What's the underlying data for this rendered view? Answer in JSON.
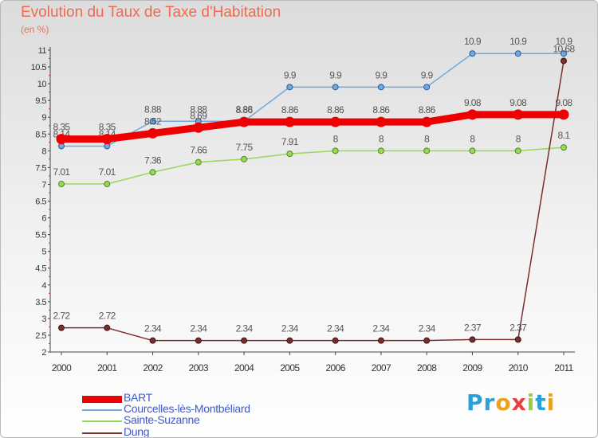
{
  "chart_data": {
    "type": "line",
    "title": "Evolution du Taux de Taxe d'Habitation",
    "subtitle": "(en %)",
    "xlabel": "",
    "ylabel": "",
    "categories": [
      "2000",
      "2001",
      "2002",
      "2003",
      "2004",
      "2005",
      "2006",
      "2007",
      "2008",
      "2009",
      "2010",
      "2011"
    ],
    "ylim": [
      2,
      11
    ],
    "yticks": [
      "2",
      "2.5",
      "3",
      "3.5",
      "4",
      "4.5",
      "5",
      "5.5",
      "6",
      "6.5",
      "7",
      "7.5",
      "8",
      "8.5",
      "9",
      "9.5",
      "10",
      "10.5",
      "11"
    ],
    "grid": false,
    "legend_position": "bottom-left",
    "series": [
      {
        "name": "BART",
        "color": "#ee0000",
        "values": [
          8.35,
          8.35,
          8.52,
          8.69,
          8.86,
          8.86,
          8.86,
          8.86,
          8.86,
          9.08,
          9.08,
          9.08
        ],
        "labels": [
          "8.35",
          "8.35",
          "8.52",
          "8.69",
          "8.86",
          "8.86",
          "8.86",
          "8.86",
          "8.86",
          "9.08",
          "9.08",
          "9.08"
        ]
      },
      {
        "name": "Courcelles-lès-Montbéliard",
        "color": "#6fa8dc",
        "values": [
          8.14,
          8.14,
          8.88,
          8.88,
          8.88,
          9.9,
          9.9,
          9.9,
          9.9,
          10.9,
          10.9,
          10.9
        ],
        "labels": [
          "8.14",
          "8.14",
          "8.88",
          "8.88",
          "8.88",
          "9.9",
          "9.9",
          "9.9",
          "9.9",
          "10.9",
          "10.9",
          "10.9"
        ]
      },
      {
        "name": "Sainte-Suzanne",
        "color": "#99d65a",
        "values": [
          7.01,
          7.01,
          7.36,
          7.66,
          7.75,
          7.91,
          8,
          8,
          8,
          8,
          8,
          8.1
        ],
        "labels": [
          "7.01",
          "7.01",
          "7.36",
          "7.66",
          "7.75",
          "7.91",
          "8",
          "8",
          "8",
          "8",
          "8",
          "8.1"
        ]
      },
      {
        "name": "Dung",
        "color": "#7a2e2e",
        "values": [
          2.72,
          2.72,
          2.34,
          2.34,
          2.34,
          2.34,
          2.34,
          2.34,
          2.34,
          2.37,
          2.37,
          10.68
        ],
        "labels": [
          "2.72",
          "2.72",
          "2.34",
          "2.34",
          "2.34",
          "2.34",
          "2.34",
          "2.34",
          "2.34",
          "2.37",
          "2.37",
          "10.68"
        ]
      }
    ]
  },
  "brand": {
    "letters": [
      "P",
      "r",
      "o",
      "x",
      "i",
      "t",
      "i"
    ],
    "colors": [
      "#2aa0d8",
      "#2aa0d8",
      "#f0a020",
      "#e84040",
      "#9ccc40",
      "#2aa0d8",
      "#e8a020"
    ]
  }
}
